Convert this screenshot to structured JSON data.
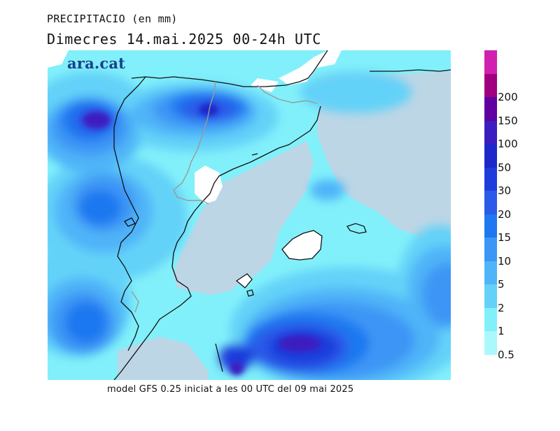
{
  "title": {
    "line1": "PRECIPITACIO (en mm)",
    "line2": "Dimecres  14.mai.2025 00-24h UTC"
  },
  "footer": "model GFS 0.25 iniciat a les 00 UTC del 09 mai 2025",
  "logo": "ara.cat",
  "legend": {
    "levels": [
      {
        "label": "",
        "color": "#d020b0"
      },
      {
        "label": "200",
        "color": "#a00080"
      },
      {
        "label": "150",
        "color": "#6000a0"
      },
      {
        "label": "100",
        "color": "#3c1ec0"
      },
      {
        "label": "50",
        "color": "#1e28c8"
      },
      {
        "label": "30",
        "color": "#1e3cdc"
      },
      {
        "label": "20",
        "color": "#2a5ae8"
      },
      {
        "label": "15",
        "color": "#1e78f0"
      },
      {
        "label": "10",
        "color": "#3c96f5"
      },
      {
        "label": "5",
        "color": "#50b4f8"
      },
      {
        "label": "2",
        "color": "#64d2f8"
      },
      {
        "label": "1",
        "color": "#82f0fa"
      },
      {
        "label": "0.5",
        "color": "#aaf8fc"
      }
    ]
  }
}
